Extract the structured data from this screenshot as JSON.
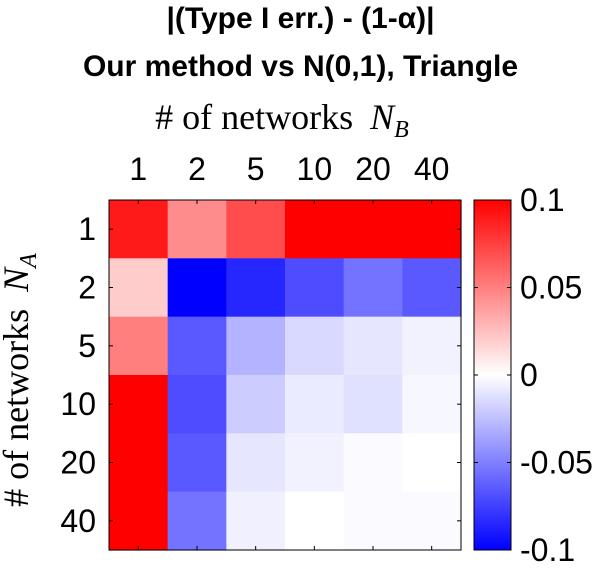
{
  "chart_data": {
    "type": "heatmap",
    "title_line1": "|(Type I err.) - (1-α)|",
    "title_line2": "Our method vs N(0,1), Triangle",
    "xlabel": "# of networks",
    "xlabel_symbol": "N",
    "xlabel_subscript": "B",
    "ylabel": "# of networks",
    "ylabel_symbol": "N",
    "ylabel_subscript": "A",
    "x_categories": [
      "1",
      "2",
      "5",
      "10",
      "20",
      "40"
    ],
    "y_categories": [
      "1",
      "2",
      "5",
      "10",
      "20",
      "40"
    ],
    "values": [
      [
        0.09,
        0.045,
        0.07,
        0.1,
        0.1,
        0.1
      ],
      [
        0.02,
        -0.1,
        -0.085,
        -0.07,
        -0.055,
        -0.065
      ],
      [
        0.05,
        -0.065,
        -0.03,
        -0.015,
        -0.01,
        -0.005
      ],
      [
        0.1,
        -0.07,
        -0.02,
        -0.008,
        -0.012,
        -0.003
      ],
      [
        0.1,
        -0.065,
        -0.01,
        -0.005,
        -0.002,
        0.0
      ],
      [
        0.1,
        -0.055,
        -0.006,
        0.0,
        -0.002,
        -0.002
      ]
    ],
    "colorbar": {
      "min": -0.1,
      "max": 0.1,
      "ticks": [
        0.1,
        0.05,
        0,
        -0.05,
        -0.1
      ],
      "tick_labels": [
        "0.1",
        "0.05",
        "0",
        "-0.05",
        "-0.1"
      ],
      "colormap": [
        "#0000ff",
        "#ffffff",
        "#ff0000"
      ]
    }
  }
}
